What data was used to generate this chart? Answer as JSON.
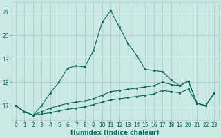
{
  "xlabel": "Humidex (Indice chaleur)",
  "bg_color": "#cce8e4",
  "grid_color": "#aacfcb",
  "line_color": "#006655",
  "xlim": [
    -0.5,
    23.5
  ],
  "ylim": [
    16.4,
    21.4
  ],
  "yticks": [
    17,
    18,
    19,
    20,
    21
  ],
  "xticks": [
    0,
    1,
    2,
    3,
    4,
    5,
    6,
    7,
    8,
    9,
    10,
    11,
    12,
    13,
    14,
    15,
    16,
    17,
    18,
    19,
    20,
    21,
    22,
    23
  ],
  "line1": [
    17.0,
    16.75,
    16.6,
    17.0,
    17.55,
    18.0,
    18.6,
    18.7,
    18.65,
    19.35,
    20.55,
    21.05,
    20.35,
    19.65,
    19.15,
    18.55,
    18.5,
    18.45,
    18.1,
    17.85,
    18.05,
    17.1,
    17.0,
    17.55
  ],
  "line2": [
    17.0,
    16.75,
    16.6,
    16.75,
    16.9,
    17.0,
    17.1,
    17.15,
    17.2,
    17.3,
    17.45,
    17.6,
    17.65,
    17.7,
    17.75,
    17.8,
    17.85,
    18.0,
    17.9,
    17.85,
    18.05,
    17.1,
    17.0,
    17.55
  ],
  "line3": [
    17.0,
    16.75,
    16.6,
    16.65,
    16.7,
    16.78,
    16.85,
    16.9,
    16.95,
    17.05,
    17.15,
    17.25,
    17.3,
    17.35,
    17.4,
    17.45,
    17.5,
    17.65,
    17.6,
    17.55,
    17.7,
    17.1,
    17.0,
    17.55
  ],
  "tick_fontsize": 5.5,
  "label_fontsize": 6.5
}
